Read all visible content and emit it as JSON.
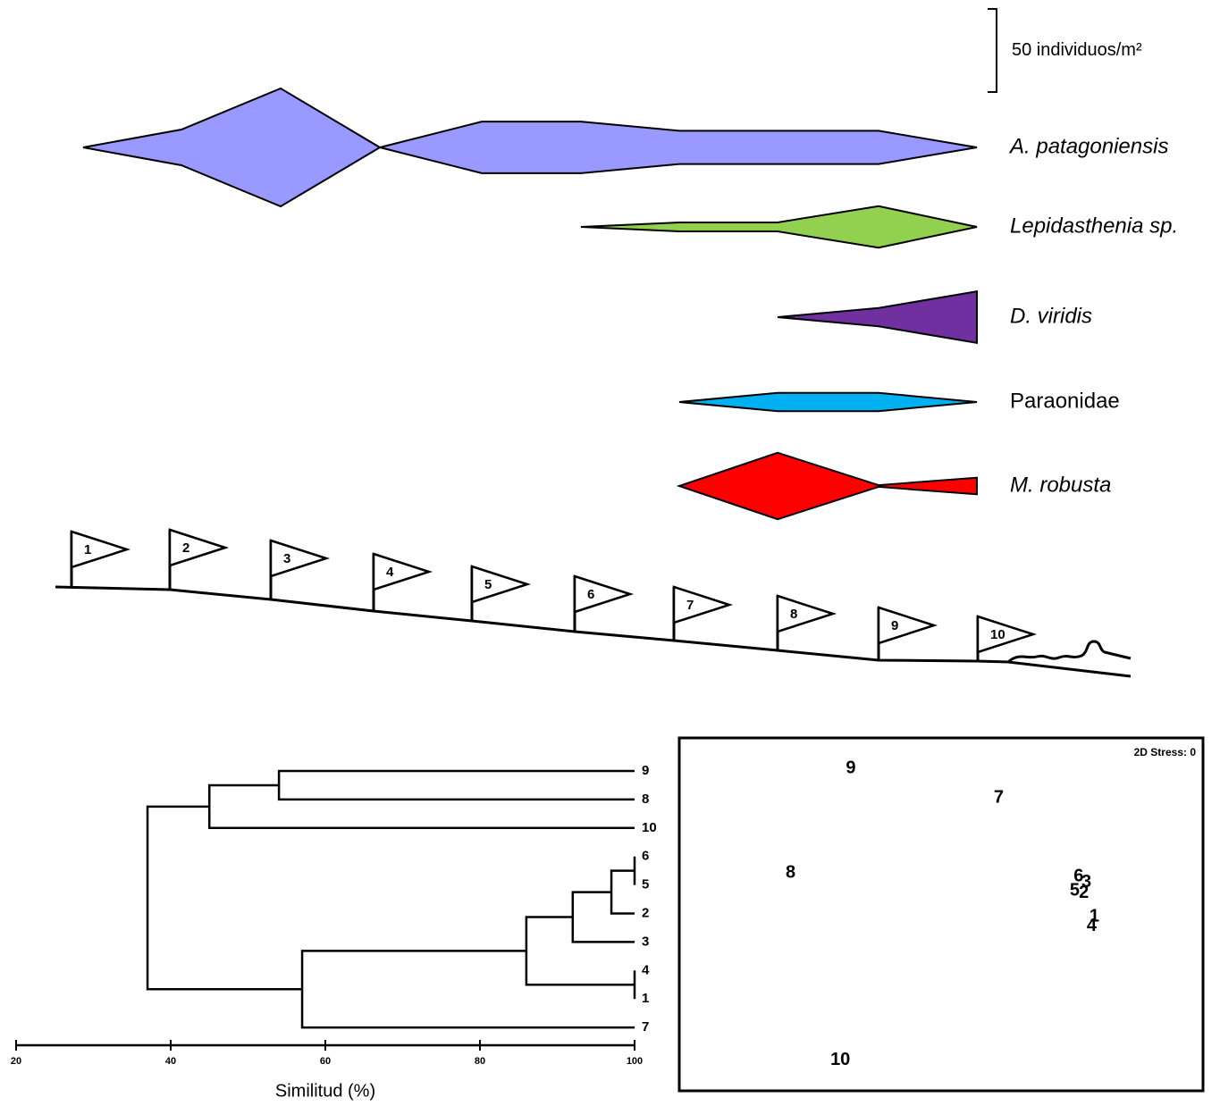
{
  "chart_data": [
    {
      "type": "kite",
      "categories": [
        "1",
        "2",
        "3",
        "4",
        "5",
        "6",
        "7",
        "8",
        "9",
        "10"
      ],
      "scale_bar": {
        "value": 50,
        "label": "50 individuos/m²"
      },
      "series": [
        {
          "name": "A. patagoniensis",
          "italic": true,
          "color": "#9999ff",
          "values": [
            0,
            21.5,
            71,
            0,
            31,
            31,
            20,
            20,
            20,
            0
          ]
        },
        {
          "name": "Lepidasthenia sp.",
          "italic": true,
          "color": "#92d050",
          "values": [
            null,
            null,
            null,
            null,
            null,
            0,
            5.4,
            5.4,
            25,
            0
          ]
        },
        {
          "name": "D. viridis",
          "italic": true,
          "color": "#7030a0",
          "values": [
            null,
            null,
            null,
            null,
            null,
            null,
            null,
            0,
            11,
            31
          ]
        },
        {
          "name": "Paraonidae",
          "italic": false,
          "color": "#00b0f0",
          "values": [
            null,
            null,
            null,
            null,
            null,
            null,
            0,
            11,
            11,
            0
          ]
        },
        {
          "name": "M. robusta",
          "italic": true,
          "color": "#ff0000",
          "values": [
            null,
            null,
            null,
            null,
            null,
            null,
            0,
            40,
            1,
            10
          ]
        }
      ]
    },
    {
      "type": "dendrogram",
      "xlim": [
        20,
        100
      ],
      "xticks": [
        20,
        40,
        60,
        80,
        100
      ],
      "xlabel": "Similitud (%)",
      "tree": {
        "height": 37,
        "children": [
          {
            "height": 45,
            "children": [
              {
                "height": 54,
                "children": [
                  {
                    "label": "9"
                  },
                  {
                    "label": "8"
                  }
                ]
              },
              {
                "label": "10"
              }
            ]
          },
          {
            "height": 57,
            "children": [
              {
                "height": 86,
                "children": [
                  {
                    "height": 92,
                    "children": [
                      {
                        "height": 97,
                        "children": [
                          {
                            "height": 100,
                            "children": [
                              {
                                "label": "6"
                              },
                              {
                                "label": "5"
                              }
                            ]
                          },
                          {
                            "label": "2"
                          }
                        ]
                      },
                      {
                        "label": "3"
                      }
                    ]
                  },
                  {
                    "height": 100,
                    "children": [
                      {
                        "label": "4"
                      },
                      {
                        "label": "1"
                      }
                    ]
                  }
                ]
              },
              {
                "label": "7"
              }
            ]
          }
        ]
      }
    },
    {
      "type": "scatter",
      "annotation": "2D Stress: 0",
      "xlim": [
        -2,
        2
      ],
      "ylim": [
        -1.5,
        1.5
      ],
      "point_labels": [
        "9",
        "7",
        "8",
        "6",
        "3",
        "5",
        "2",
        "1",
        "4",
        "10"
      ],
      "x": [
        -0.69,
        0.44,
        -1.15,
        1.05,
        1.11,
        1.02,
        1.09,
        1.17,
        1.15,
        -0.77
      ],
      "values": [
        1.24,
        0.99,
        0.35,
        0.32,
        0.27,
        0.2,
        0.18,
        -0.02,
        -0.1,
        -1.24
      ]
    }
  ]
}
